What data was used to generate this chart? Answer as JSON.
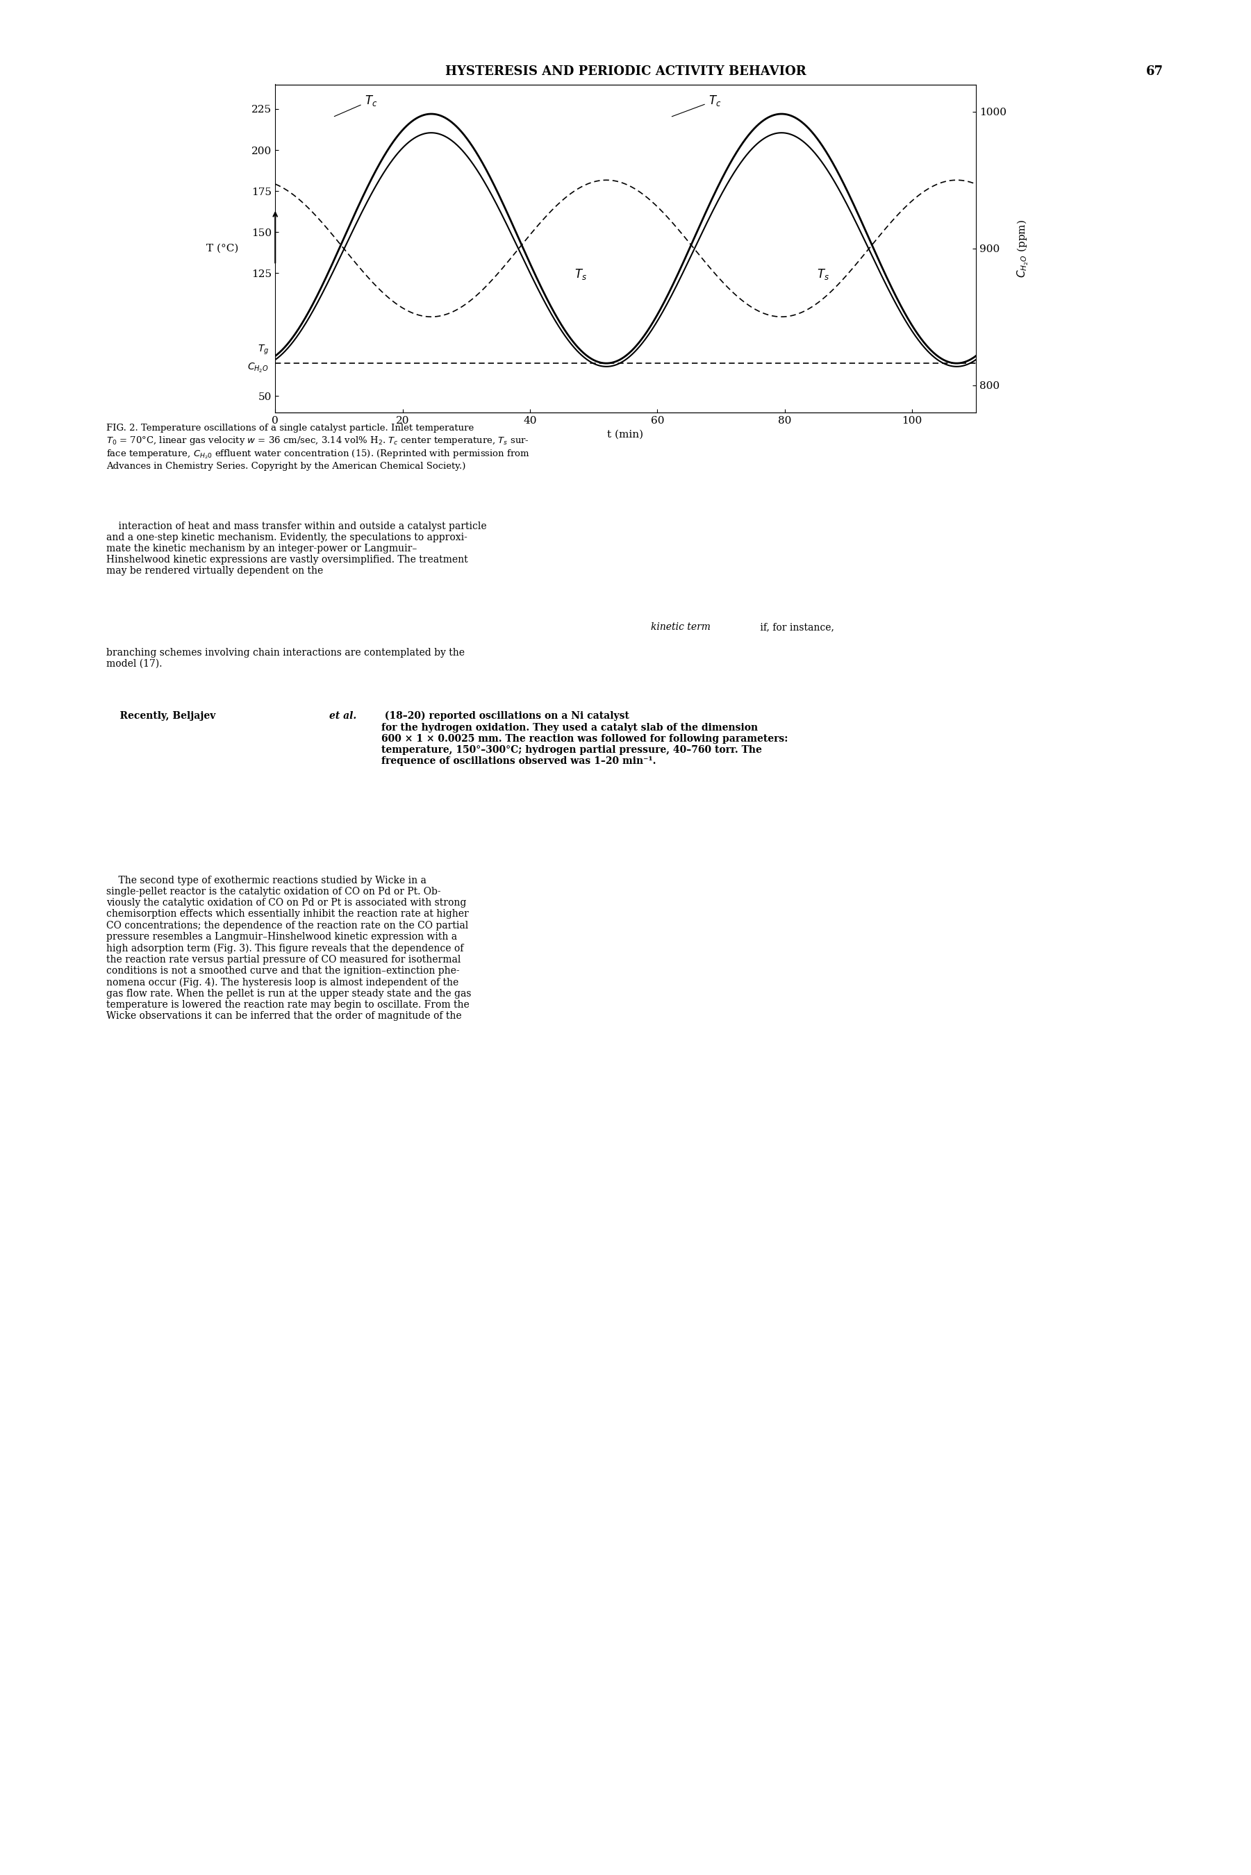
{
  "page_header": "HYSTERESIS AND PERIODIC ACTIVITY BEHAVIOR",
  "page_number": "67",
  "fig_caption": "FIG. 2. Temperature oscillations of a single catalyst particle. Inlet temperature T₀ = 70°C, linear gas velocity w = 36 cm/sec, 3.14 vol% H₂. T⁣ center temperature, Tₛ surface temperature, Cₚ₂ₒ effluent water concentration (15). (Reprinted with permission from Advances in Chemistry Series. Copyright by the American Chemical Society.)",
  "ylabel_left": "T (°C)",
  "ylabel_right": "Cₚ₂O (ppm)",
  "xlabel": "t (min)",
  "yticks_left": [
    50,
    125,
    150,
    175,
    200,
    225
  ],
  "yticks_right": [
    800,
    900,
    1000
  ],
  "xticks": [
    0,
    20,
    40,
    60,
    80,
    100
  ],
  "ylim_left": [
    40,
    240
  ],
  "ylim_right": [
    780,
    1020
  ],
  "xlim": [
    0,
    110
  ],
  "Tg_value": 70,
  "body_text_bold1": "Recently, Beljajev ",
  "body_text_paragraphs": [
    "interaction of heat and mass transfer within and outside a catalyst particle and a one-step kinetic mechanism. Evidently, the speculations to approximate the kinetic mechanism by an integer-power or Langmuir–Hinshelwood kinetic expressions are vastly oversimplified. The treatment may be rendered virtually dependent on the kinetic term if, for instance, branching schemes involving chain interactions are contemplated by the model (17).",
    "Recently, Beljajev et al. (18–20) reported oscillations on a Ni catalyst for the hydrogen oxidation. They used a catalyt slab of the dimension 600 × 1 × 0.0025 mm. The reaction was followed for following parameters: temperature, 150°–300°C; hydrogen partial pressure, 40–760 torr. The frequence of oscillations observed was 1–20 min⁻¹.",
    "The second type of exothermic reactions studied by Wicke in a single-pellet reactor is the catalytic oxidation of CO on Pd or Pt. Obviously the catalytic oxidation of CO on Pd or Pt is associated with strong chemisorption effects which essentially inhibit the reaction rate at higher CO concentrations; the dependence of the reaction rate on the CO partial pressure resembles a Langmuir–Hinshelwood kinetic expression with a high adsorption term (Fig. 3). This figure reveals that the dependence of the reaction rate versus partial pressure of CO measured for isothermal conditions is not a smoothed curve and that the ignition–extinction phenomena occur (Fig. 4). The hysteresis loop is almost independent of the gas flow rate. When the pellet is run at the upper steady state and the gas temperature is lowered the reaction rate may begin to oscillate. From the Wicke observations it can be inferred that the order of magnitude of the"
  ],
  "background_color": "#ffffff",
  "line_color": "#000000",
  "dashed_line_color": "#000000"
}
